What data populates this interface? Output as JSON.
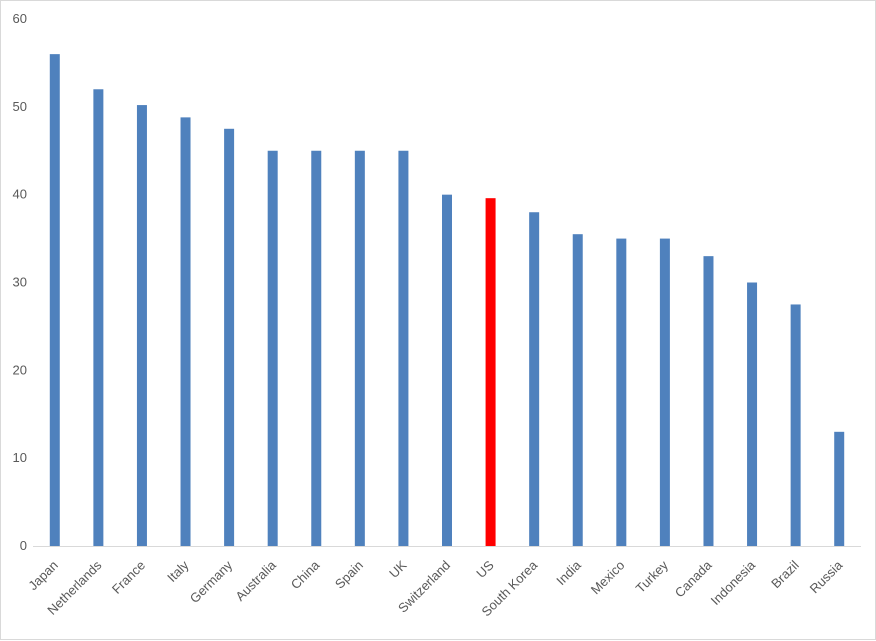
{
  "chart_data": {
    "type": "bar",
    "title": "",
    "xlabel": "",
    "ylabel": "",
    "categories": [
      "Japan",
      "Netherlands",
      "France",
      "Italy",
      "Germany",
      "Australia",
      "China",
      "Spain",
      "UK",
      "Switzerland",
      "US",
      "South Korea",
      "India",
      "Mexico",
      "Turkey",
      "Canada",
      "Indonesia",
      "Brazil",
      "Russia"
    ],
    "values": [
      56,
      52,
      50.2,
      48.8,
      47.5,
      45,
      45,
      45,
      45,
      40,
      39.6,
      38,
      35.5,
      35,
      35,
      33,
      30,
      27.5,
      13
    ],
    "highlight": "US",
    "ylim": [
      0,
      60
    ],
    "yticks": [
      0,
      10,
      20,
      30,
      40,
      50,
      60
    ],
    "grid": false,
    "legend": "none",
    "colors": {
      "bar": "#4f81bd",
      "highlight": "#ff0000",
      "axis": "#d9d9d9",
      "text": "#595959"
    }
  }
}
